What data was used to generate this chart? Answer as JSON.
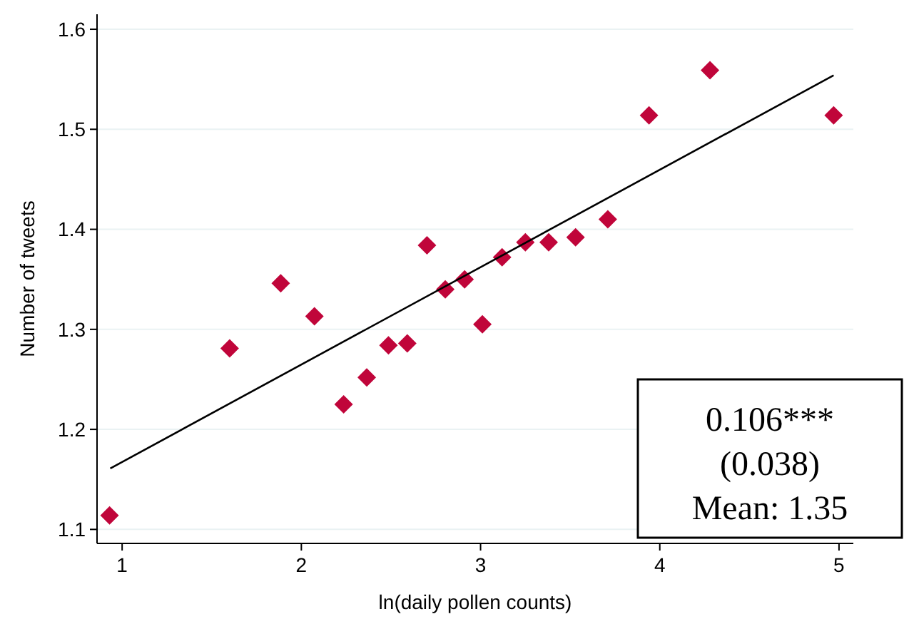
{
  "chart_data": {
    "type": "scatter",
    "xlabel": "ln(daily pollen counts)",
    "ylabel": "Number of tweets",
    "xlim": [
      0.86,
      5.08
    ],
    "ylim": [
      1.086,
      1.615
    ],
    "xticks": [
      1,
      2,
      3,
      4,
      5
    ],
    "yticks": [
      1.1,
      1.2,
      1.3,
      1.4,
      1.5,
      1.6
    ],
    "grid": "y",
    "marker": "diamond",
    "annotations": [
      "0.106***",
      "(0.038)",
      "Mean: 1.35"
    ],
    "series": [
      {
        "color": "#c0053a",
        "x": [
          0.93,
          1.6,
          1.885,
          2.073,
          2.236,
          2.365,
          2.486,
          2.591,
          2.701,
          2.803,
          2.911,
          3.01,
          3.12,
          3.25,
          3.38,
          3.53,
          3.71,
          3.94,
          4.28,
          4.97
        ],
        "values": [
          1.114,
          1.281,
          1.346,
          1.313,
          1.225,
          1.252,
          1.284,
          1.286,
          1.384,
          1.34,
          1.35,
          1.305,
          1.372,
          1.387,
          1.387,
          1.392,
          1.41,
          1.514,
          1.559,
          1.514
        ]
      },
      {
        "type": "line",
        "color": "#000000",
        "marker": "none",
        "x": [
          0.934,
          4.97
        ],
        "values": [
          1.161,
          1.554
        ]
      }
    ]
  }
}
